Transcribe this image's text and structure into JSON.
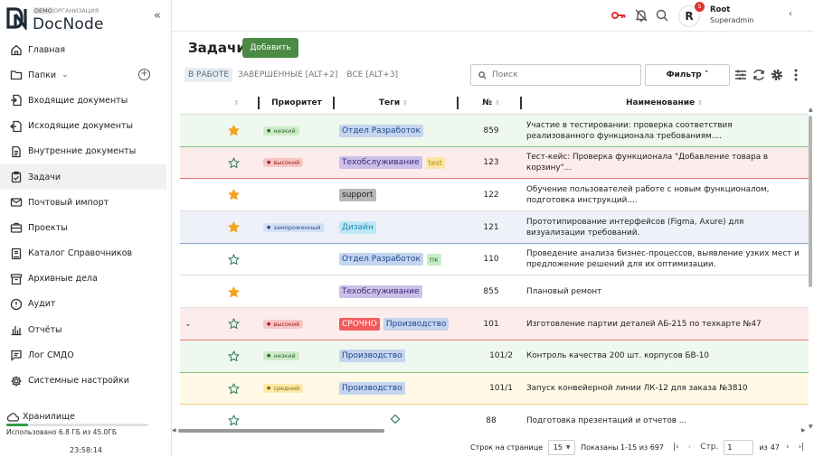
{
  "brand": {
    "name": "DocNode",
    "demo_badge": "DEMO",
    "org_label": "ОРГАНИЗАЦИЯ",
    "collapse_icon": "double-chevron-left-icon"
  },
  "sidebar": {
    "items": [
      {
        "label": "Главная",
        "icon": "home-icon"
      },
      {
        "label": "Папки",
        "icon": "folder-icon"
      },
      {
        "label": "Входящие документы",
        "icon": "inbox-doc-icon"
      },
      {
        "label": "Исходящие документы",
        "icon": "outbox-doc-icon"
      },
      {
        "label": "Внутренние документы",
        "icon": "document-icon"
      },
      {
        "label": "Задачи",
        "icon": "task-check-icon"
      },
      {
        "label": "Почтовый импорт",
        "icon": "mail-icon"
      },
      {
        "label": "Проекты",
        "icon": "briefcase-icon"
      },
      {
        "label": "Каталог Справочников",
        "icon": "catalog-icon"
      },
      {
        "label": "Архивные дела",
        "icon": "archive-icon"
      },
      {
        "label": "Аудит",
        "icon": "alert-circle-icon"
      },
      {
        "label": "Отчёты",
        "icon": "chart-icon"
      },
      {
        "label": "Лог СМДО",
        "icon": "log-icon"
      },
      {
        "label": "Системные настройки",
        "icon": "gear-icon"
      }
    ],
    "active_index": 5,
    "storage": {
      "title": "Хранилище",
      "used_text": "Использовано 6.8 ГБ из 45.0ГБ",
      "used_fraction": 0.151
    },
    "clock": "23:58:14"
  },
  "header": {
    "user_initial": "R",
    "notification_count": "5",
    "user_name": "Root",
    "user_role": "Superadmin",
    "key_color": "#e03131"
  },
  "main": {
    "title": "Задачи",
    "add_button": "Добавить",
    "tabs": [
      "В РАБОТЕ",
      "ЗАВЕРШЕННЫЕ [ALT+2]",
      "ВСЕ [ALT+3]"
    ],
    "active_tab": 0,
    "search_placeholder": "Поиск",
    "filter_button": "Фильтр"
  },
  "table": {
    "columns": {
      "priority": "Приоритет",
      "tags": "Теги",
      "number": "№",
      "name": "Наименование"
    },
    "rows": [
      {
        "starred": true,
        "priority": "низкий",
        "tags": [
          "Отдел Разработок"
        ],
        "number": "859",
        "name": "Участие в тестировании: проверка соответствия реализованного функционала требованиям....",
        "color": "green"
      },
      {
        "starred": false,
        "priority": "высокий",
        "tags": [
          "Техобслуживание",
          "test"
        ],
        "number": "123",
        "name": "Тест-кейс: Проверка функционала \"Добавление товара в корзину\"...",
        "color": "red"
      },
      {
        "starred": true,
        "priority": "",
        "tags": [
          "support"
        ],
        "number": "122",
        "name": "Обучение пользователей работе с новым функционалом, подготовка инструкций....",
        "color": "none"
      },
      {
        "starred": true,
        "priority": "замороженный",
        "tags": [
          "Дизайн"
        ],
        "number": "121",
        "name": "Прототипирование интерфейсов (Figma, Axure) для визуализации требований.",
        "color": "blue"
      },
      {
        "starred": false,
        "priority": "",
        "tags": [
          "Отдел Разработок",
          "пк"
        ],
        "number": "110",
        "name": "Проведение анализа бизнес-процессов, выявление узких мест и предложение решений для их оптимизации.",
        "color": "none"
      },
      {
        "starred": true,
        "priority": "",
        "tags": [
          "Техобслуживание"
        ],
        "number": "855",
        "name": "Плановый ремонт",
        "color": "none"
      },
      {
        "starred": false,
        "priority": "высокий",
        "tags": [
          "СРОЧНО",
          "Производство"
        ],
        "number": "101",
        "name": "Изготовление партии деталей АБ-215 по техкарте №47",
        "color": "red",
        "expandable": true
      },
      {
        "starred": false,
        "priority": "низкий",
        "tags": [
          "Производство"
        ],
        "number": "101/2",
        "name": "Контроль качества 200 шт. корпусов БВ-10",
        "color": "green"
      },
      {
        "starred": false,
        "priority": "средний",
        "tags": [
          "Производство"
        ],
        "number": "101/1",
        "name": "Запуск конвейерной линии ЛК-12 для заказа №3810",
        "color": "yellow"
      },
      {
        "starred": false,
        "priority": "",
        "tags": [],
        "number": "88",
        "name": "Подготовка презентаций и отчетов ...",
        "color": "none"
      }
    ]
  },
  "pager": {
    "rows_label": "Строк на странице",
    "rows_value": "15",
    "shown": "Показаны 1-15 из 697",
    "page_label": "Стр.",
    "page_value": "1",
    "of_label": "из",
    "total_pages": "47"
  }
}
